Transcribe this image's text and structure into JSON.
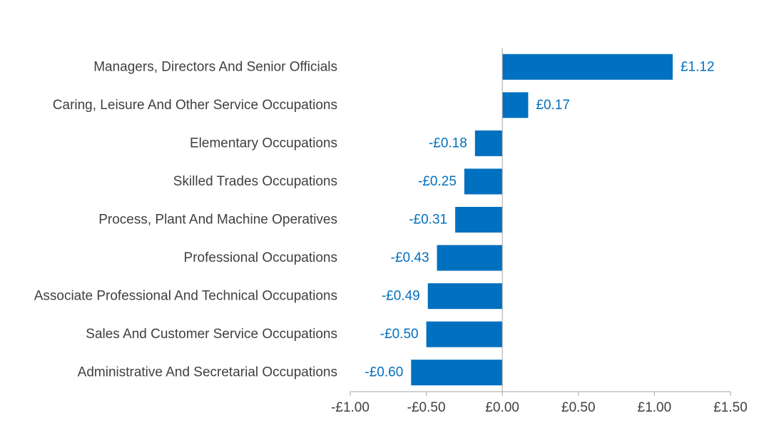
{
  "chart_data": {
    "type": "bar",
    "orientation": "horizontal",
    "categories": [
      "Managers, Directors And Senior Officials",
      "Caring, Leisure And Other Service Occupations",
      "Elementary Occupations",
      "Skilled Trades Occupations",
      "Process, Plant And Machine Operatives",
      "Professional Occupations",
      "Associate Professional And Technical Occupations",
      "Sales And Customer Service Occupations",
      "Administrative And Secretarial Occupations"
    ],
    "values": [
      1.12,
      0.17,
      -0.18,
      -0.25,
      -0.31,
      -0.43,
      -0.49,
      -0.5,
      -0.6
    ],
    "data_labels": [
      "£1.12",
      "£0.17",
      "-£0.18",
      "-£0.25",
      "-£0.31",
      "-£0.43",
      "-£0.49",
      "-£0.50",
      "-£0.60"
    ],
    "xlim": [
      -1.0,
      1.5
    ],
    "x_ticks": [
      -1.0,
      -0.5,
      0.0,
      0.5,
      1.0,
      1.5
    ],
    "x_tick_labels": [
      "-£1.00",
      "-£0.50",
      "£0.00",
      "£0.50",
      "£1.00",
      "£1.50"
    ],
    "title": "",
    "xlabel": "",
    "ylabel": "",
    "grid": false,
    "legend": "none",
    "colors": {
      "bar": "#0070C0",
      "label": "#0070C0",
      "axis": "#A6A6A6",
      "text": "#404040"
    }
  }
}
